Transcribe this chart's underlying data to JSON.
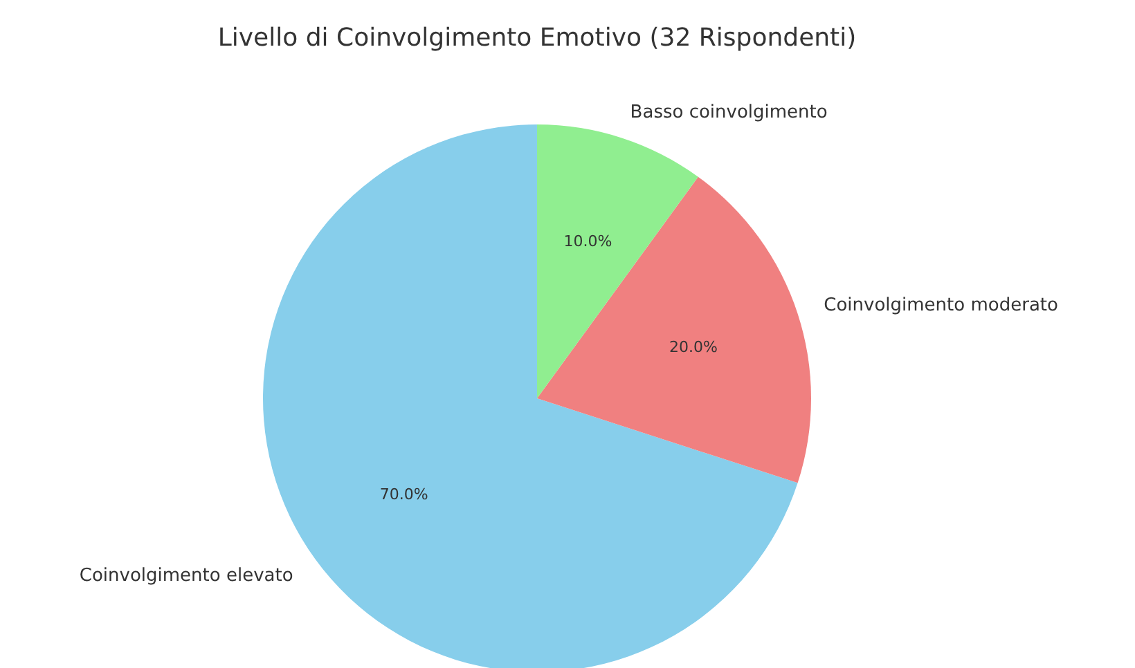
{
  "chart_data": {
    "type": "pie",
    "title": "Livello di Coinvolgimento Emotivo (32 Rispondenti)",
    "categories": [
      "Coinvolgimento elevato",
      "Coinvolgimento moderato",
      "Basso coinvolgimento"
    ],
    "values": [
      70,
      20,
      10
    ],
    "colors": [
      "#87ceeb",
      "#f08080",
      "#90ee90"
    ],
    "value_labels": [
      "70.0%",
      "20.0%",
      "10.0%"
    ]
  }
}
